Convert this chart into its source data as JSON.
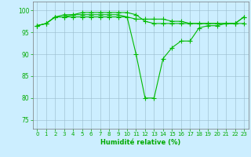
{
  "x": [
    0,
    1,
    2,
    3,
    4,
    5,
    6,
    7,
    8,
    9,
    10,
    11,
    12,
    13,
    14,
    15,
    16,
    17,
    18,
    19,
    20,
    21,
    22,
    23
  ],
  "series": [
    [
      96.5,
      97,
      98.5,
      98.5,
      98.5,
      98.5,
      98.5,
      98.5,
      98.5,
      98.5,
      98.5,
      98,
      98,
      98,
      98,
      97.5,
      97.5,
      97,
      97,
      97,
      97,
      97,
      97,
      97
    ],
    [
      96.5,
      97,
      98.5,
      99,
      99,
      99.5,
      99.5,
      99.5,
      99.5,
      99.5,
      99.5,
      99,
      97.5,
      97,
      97,
      97,
      97,
      97,
      97,
      97,
      97,
      97,
      97,
      98.5
    ],
    [
      96.5,
      97,
      98.5,
      98.5,
      99,
      99,
      99,
      99,
      99,
      99,
      98.5,
      90,
      80,
      80,
      89,
      91.5,
      93,
      93,
      96,
      96.5,
      96.5,
      97,
      97,
      98.5
    ]
  ],
  "line_color": "#00bb00",
  "marker": "+",
  "marker_size": 4,
  "line_width": 0.8,
  "xlabel": "Humidité relative (%)",
  "xlabel_fontsize": 6,
  "xlabel_color": "#00aa00",
  "ylabel_ticks": [
    75,
    80,
    85,
    90,
    95,
    100
  ],
  "ylim": [
    73,
    102
  ],
  "xlim": [
    -0.5,
    23.5
  ],
  "xtick_labels": [
    "0",
    "1",
    "2",
    "3",
    "4",
    "5",
    "6",
    "7",
    "8",
    "9",
    "10",
    "11",
    "12",
    "13",
    "14",
    "15",
    "16",
    "17",
    "18",
    "19",
    "20",
    "21",
    "22",
    "23"
  ],
  "xtick_fontsize": 5,
  "ytick_fontsize": 5.5,
  "bg_color": "#cceeff",
  "grid_color": "#99bbcc",
  "tick_color": "#00aa00",
  "label_color": "#00aa00"
}
